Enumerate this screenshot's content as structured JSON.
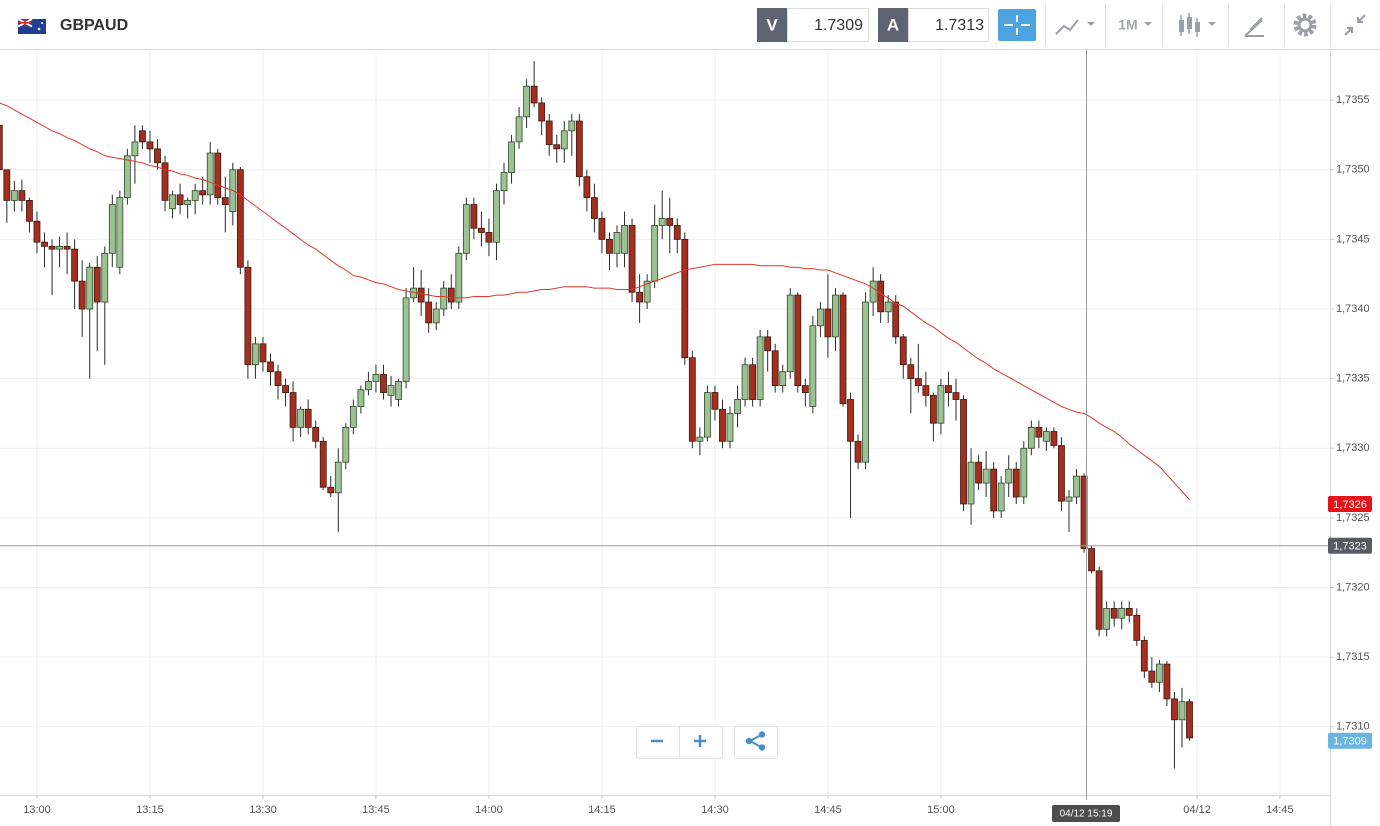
{
  "header": {
    "symbol": "GBPAUD",
    "bid_label": "V",
    "bid": "1.7309",
    "ask_label": "A",
    "ask": "1.7313",
    "timeframe": "1M"
  },
  "chart_data": {
    "type": "candlestick",
    "grid": true,
    "up_color": "#9cc293",
    "down_color": "#a3301f",
    "categories": [
      null,
      null,
      null,
      null,
      null,
      "13:00",
      null,
      null,
      null,
      null,
      null,
      null,
      null,
      null,
      null,
      null,
      null,
      null,
      null,
      null,
      "13:15",
      null,
      null,
      null,
      null,
      null,
      null,
      null,
      null,
      null,
      null,
      null,
      null,
      null,
      null,
      "13:30",
      null,
      null,
      null,
      null,
      null,
      null,
      null,
      null,
      null,
      null,
      null,
      null,
      null,
      null,
      "13:45",
      null,
      null,
      null,
      null,
      null,
      null,
      null,
      null,
      null,
      null,
      null,
      null,
      null,
      null,
      "14:00",
      null,
      null,
      null,
      null,
      null,
      null,
      null,
      null,
      null,
      null,
      null,
      null,
      null,
      null,
      "14:15",
      null,
      null,
      null,
      null,
      null,
      null,
      null,
      null,
      null,
      null,
      null,
      null,
      null,
      null,
      "14:30",
      null,
      null,
      null,
      null,
      null,
      null,
      null,
      null,
      null,
      null,
      null,
      null,
      null,
      null,
      "14:45",
      null,
      null,
      null,
      null,
      null,
      null,
      null,
      null,
      null,
      null,
      null,
      null,
      null,
      null,
      "15:00",
      null,
      null,
      null,
      null,
      null,
      null,
      null,
      null,
      null,
      null,
      null,
      null,
      null,
      null,
      null,
      null,
      null,
      null,
      null,
      null,
      null,
      null,
      null,
      null,
      null,
      null,
      null,
      null,
      null,
      null,
      null,
      null,
      null,
      "04/12",
      null,
      null,
      null,
      null,
      null,
      null,
      null,
      null,
      null,
      null,
      "14:45"
    ],
    "ohlc": [
      [
        1.73532,
        1.73545,
        1.73498,
        1.735
      ],
      [
        1.735,
        1.735,
        1.73462,
        1.73478
      ],
      [
        1.73478,
        1.73492,
        1.7347,
        1.73485
      ],
      [
        1.73485,
        1.73493,
        1.7347,
        1.73478
      ],
      [
        1.73478,
        1.7348,
        1.73455,
        1.73463
      ],
      [
        1.73463,
        1.7347,
        1.7344,
        1.73448
      ],
      [
        1.73448,
        1.73455,
        1.7343,
        1.73445
      ],
      [
        1.73445,
        1.7345,
        1.7341,
        1.73443
      ],
      [
        1.73443,
        1.73452,
        1.7343,
        1.73445
      ],
      [
        1.73445,
        1.73455,
        1.73425,
        1.73443
      ],
      [
        1.73443,
        1.7345,
        1.734,
        1.7342
      ],
      [
        1.7342,
        1.73435,
        1.7338,
        1.734
      ],
      [
        1.734,
        1.73433,
        1.7335,
        1.7343
      ],
      [
        1.7343,
        1.73438,
        1.7337,
        1.73405
      ],
      [
        1.73405,
        1.73445,
        1.7336,
        1.7344
      ],
      [
        1.7344,
        1.73482,
        1.7343,
        1.73475
      ],
      [
        1.7343,
        1.73485,
        1.73425,
        1.7348
      ],
      [
        1.7348,
        1.73515,
        1.73475,
        1.7351
      ],
      [
        1.7351,
        1.73532,
        1.7349,
        1.7352
      ],
      [
        1.73528,
        1.73532,
        1.73515,
        1.7352
      ],
      [
        1.7352,
        1.73528,
        1.73505,
        1.73515
      ],
      [
        1.73515,
        1.73522,
        1.735,
        1.73505
      ],
      [
        1.73505,
        1.7351,
        1.7347,
        1.73478
      ],
      [
        1.73472,
        1.73485,
        1.73465,
        1.73482
      ],
      [
        1.73482,
        1.7349,
        1.73468,
        1.73475
      ],
      [
        1.73475,
        1.7348,
        1.73465,
        1.73478
      ],
      [
        1.73478,
        1.7349,
        1.73468,
        1.73485
      ],
      [
        1.73485,
        1.73495,
        1.73475,
        1.73482
      ],
      [
        1.73482,
        1.7352,
        1.73475,
        1.73512
      ],
      [
        1.73512,
        1.73515,
        1.73475,
        1.7348
      ],
      [
        1.7348,
        1.73495,
        1.73455,
        1.73475
      ],
      [
        1.7347,
        1.73505,
        1.7346,
        1.735
      ],
      [
        1.735,
        1.73502,
        1.73425,
        1.7343
      ],
      [
        1.7343,
        1.73435,
        1.7335,
        1.7336
      ],
      [
        1.7336,
        1.7338,
        1.7335,
        1.73375
      ],
      [
        1.73375,
        1.7338,
        1.73355,
        1.73362
      ],
      [
        1.73362,
        1.73368,
        1.73345,
        1.73355
      ],
      [
        1.73355,
        1.7336,
        1.73335,
        1.73345
      ],
      [
        1.73345,
        1.7335,
        1.7333,
        1.7334
      ],
      [
        1.7334,
        1.73348,
        1.73305,
        1.73315
      ],
      [
        1.73315,
        1.7333,
        1.73308,
        1.73328
      ],
      [
        1.73328,
        1.73335,
        1.7331,
        1.73315
      ],
      [
        1.73315,
        1.7332,
        1.733,
        1.73305
      ],
      [
        1.73305,
        1.73308,
        1.7327,
        1.73272
      ],
      [
        1.73272,
        1.7328,
        1.73265,
        1.73268
      ],
      [
        1.73268,
        1.733,
        1.7324,
        1.7329
      ],
      [
        1.7329,
        1.73318,
        1.73285,
        1.73315
      ],
      [
        1.73315,
        1.73335,
        1.7331,
        1.7333
      ],
      [
        1.7333,
        1.73345,
        1.73325,
        1.73342
      ],
      [
        1.73342,
        1.73355,
        1.73338,
        1.73348
      ],
      [
        1.73348,
        1.7336,
        1.7334,
        1.73353
      ],
      [
        1.73353,
        1.7336,
        1.73335,
        1.7334
      ],
      [
        1.73338,
        1.73352,
        1.7333,
        1.73345
      ],
      [
        1.73335,
        1.7335,
        1.7333,
        1.73348
      ],
      [
        1.73348,
        1.73415,
        1.73343,
        1.73408
      ],
      [
        1.73408,
        1.7343,
        1.73405,
        1.73415
      ],
      [
        1.73415,
        1.73428,
        1.73395,
        1.73405
      ],
      [
        1.73405,
        1.73415,
        1.73383,
        1.7339
      ],
      [
        1.7339,
        1.73405,
        1.73385,
        1.734
      ],
      [
        1.734,
        1.7342,
        1.73395,
        1.73415
      ],
      [
        1.73415,
        1.73425,
        1.734,
        1.73405
      ],
      [
        1.73405,
        1.73445,
        1.734,
        1.7344
      ],
      [
        1.7344,
        1.7348,
        1.73435,
        1.73475
      ],
      [
        1.73475,
        1.7348,
        1.7345,
        1.73458
      ],
      [
        1.73458,
        1.7347,
        1.73445,
        1.73455
      ],
      [
        1.73455,
        1.73465,
        1.73438,
        1.73448
      ],
      [
        1.73448,
        1.7349,
        1.73435,
        1.73485
      ],
      [
        1.73485,
        1.73505,
        1.73475,
        1.73498
      ],
      [
        1.73498,
        1.73525,
        1.7349,
        1.7352
      ],
      [
        1.7352,
        1.73545,
        1.73515,
        1.73538
      ],
      [
        1.73538,
        1.73565,
        1.7353,
        1.7356
      ],
      [
        1.7356,
        1.73578,
        1.73545,
        1.73548
      ],
      [
        1.73548,
        1.73552,
        1.73525,
        1.73535
      ],
      [
        1.73535,
        1.7354,
        1.7351,
        1.73518
      ],
      [
        1.73518,
        1.73525,
        1.73505,
        1.73515
      ],
      [
        1.73515,
        1.73535,
        1.73505,
        1.73528
      ],
      [
        1.73528,
        1.7354,
        1.7351,
        1.73535
      ],
      [
        1.73535,
        1.7354,
        1.73488,
        1.73495
      ],
      [
        1.73495,
        1.735,
        1.7347,
        1.7348
      ],
      [
        1.7348,
        1.7349,
        1.73455,
        1.73465
      ],
      [
        1.73465,
        1.7347,
        1.7344,
        1.7345
      ],
      [
        1.7345,
        1.73455,
        1.73428,
        1.7344
      ],
      [
        1.7344,
        1.7346,
        1.7343,
        1.73455
      ],
      [
        1.7344,
        1.7347,
        1.7343,
        1.7346
      ],
      [
        1.7346,
        1.73465,
        1.73405,
        1.73412
      ],
      [
        1.73412,
        1.73425,
        1.7339,
        1.73405
      ],
      [
        1.73405,
        1.73425,
        1.734,
        1.7342
      ],
      [
        1.7342,
        1.73475,
        1.73415,
        1.7346
      ],
      [
        1.7346,
        1.73485,
        1.7345,
        1.73465
      ],
      [
        1.73465,
        1.7348,
        1.7344,
        1.7346
      ],
      [
        1.7346,
        1.73465,
        1.7344,
        1.7345
      ],
      [
        1.7345,
        1.73455,
        1.7336,
        1.73365
      ],
      [
        1.73365,
        1.7337,
        1.733,
        1.73305
      ],
      [
        1.73305,
        1.73315,
        1.73295,
        1.73308
      ],
      [
        1.73308,
        1.73345,
        1.73305,
        1.7334
      ],
      [
        1.7334,
        1.73345,
        1.7332,
        1.73328
      ],
      [
        1.73328,
        1.73335,
        1.733,
        1.73305
      ],
      [
        1.73305,
        1.7333,
        1.733,
        1.73325
      ],
      [
        1.73325,
        1.73345,
        1.73315,
        1.73335
      ],
      [
        1.73335,
        1.73365,
        1.7333,
        1.7336
      ],
      [
        1.7336,
        1.73365,
        1.7333,
        1.73335
      ],
      [
        1.73335,
        1.73385,
        1.7333,
        1.7338
      ],
      [
        1.7338,
        1.73385,
        1.73355,
        1.7337
      ],
      [
        1.7337,
        1.73375,
        1.7334,
        1.73345
      ],
      [
        1.73345,
        1.7336,
        1.7334,
        1.73355
      ],
      [
        1.73355,
        1.73415,
        1.7335,
        1.7341
      ],
      [
        1.7341,
        1.73412,
        1.7334,
        1.73345
      ],
      [
        1.73345,
        1.7335,
        1.7333,
        1.7334
      ],
      [
        1.7333,
        1.73395,
        1.73325,
        1.73388
      ],
      [
        1.73388,
        1.73405,
        1.7338,
        1.734
      ],
      [
        1.734,
        1.73425,
        1.73365,
        1.7338
      ],
      [
        1.7338,
        1.73415,
        1.7337,
        1.7341
      ],
      [
        1.7341,
        1.73412,
        1.7333,
        1.73332
      ],
      [
        1.73335,
        1.7334,
        1.7325,
        1.73305
      ],
      [
        1.73305,
        1.7331,
        1.73285,
        1.7329
      ],
      [
        1.7329,
        1.73412,
        1.73285,
        1.73405
      ],
      [
        1.73405,
        1.7343,
        1.73395,
        1.7342
      ],
      [
        1.7342,
        1.73425,
        1.7339,
        1.73398
      ],
      [
        1.73398,
        1.7341,
        1.7339,
        1.73405
      ],
      [
        1.73405,
        1.7341,
        1.73375,
        1.7338
      ],
      [
        1.7338,
        1.73382,
        1.7335,
        1.7336
      ],
      [
        1.7336,
        1.73365,
        1.73325,
        1.7335
      ],
      [
        1.7335,
        1.73375,
        1.7334,
        1.73345
      ],
      [
        1.73345,
        1.73355,
        1.7333,
        1.73338
      ],
      [
        1.73338,
        1.7334,
        1.73305,
        1.73318
      ],
      [
        1.73318,
        1.7335,
        1.7331,
        1.73345
      ],
      [
        1.73345,
        1.73355,
        1.7333,
        1.7334
      ],
      [
        1.7334,
        1.7335,
        1.7332,
        1.73335
      ],
      [
        1.73335,
        1.73338,
        1.73255,
        1.7326
      ],
      [
        1.7326,
        1.733,
        1.73245,
        1.7329
      ],
      [
        1.7329,
        1.73295,
        1.7327,
        1.73275
      ],
      [
        1.73275,
        1.73298,
        1.73265,
        1.73285
      ],
      [
        1.73285,
        1.7329,
        1.7325,
        1.73255
      ],
      [
        1.73255,
        1.7328,
        1.7325,
        1.73275
      ],
      [
        1.73275,
        1.73295,
        1.73265,
        1.73285
      ],
      [
        1.73285,
        1.7329,
        1.7326,
        1.73265
      ],
      [
        1.73265,
        1.73305,
        1.7326,
        1.733
      ],
      [
        1.733,
        1.7332,
        1.73295,
        1.73315
      ],
      [
        1.73315,
        1.7332,
        1.733,
        1.73308
      ],
      [
        1.73305,
        1.73315,
        1.73298,
        1.73312
      ],
      [
        1.73312,
        1.73315,
        1.733,
        1.73302
      ],
      [
        1.73302,
        1.73308,
        1.73255,
        1.73262
      ],
      [
        1.73262,
        1.7327,
        1.7324,
        1.73265
      ],
      [
        1.73265,
        1.73285,
        1.7326,
        1.7328
      ],
      [
        1.7328,
        1.73282,
        1.73225,
        1.73228
      ],
      [
        1.73228,
        1.7323,
        1.7321,
        1.73212
      ],
      [
        1.73212,
        1.73215,
        1.73165,
        1.7317
      ],
      [
        1.7317,
        1.7319,
        1.73165,
        1.73185
      ],
      [
        1.73185,
        1.7319,
        1.73172,
        1.73178
      ],
      [
        1.73178,
        1.7319,
        1.7317,
        1.73185
      ],
      [
        1.73185,
        1.7319,
        1.73175,
        1.7318
      ],
      [
        1.7318,
        1.73185,
        1.73158,
        1.73162
      ],
      [
        1.73162,
        1.73165,
        1.73135,
        1.7314
      ],
      [
        1.7314,
        1.7315,
        1.73128,
        1.73132
      ],
      [
        1.73132,
        1.73148,
        1.73125,
        1.73145
      ],
      [
        1.73145,
        1.73147,
        1.73115,
        1.7312
      ],
      [
        1.7312,
        1.73125,
        1.7307,
        1.73105
      ],
      [
        1.73105,
        1.73128,
        1.73085,
        1.73118
      ],
      [
        1.73118,
        1.7312,
        1.7309,
        1.73092
      ],
      null,
      null,
      null,
      null,
      null,
      null,
      null,
      null,
      null,
      null,
      null,
      null
    ],
    "ma": {
      "color": "#e0392b",
      "values": [
        1.73548,
        1.73546,
        1.73543,
        1.7354,
        1.73537,
        1.73534,
        1.73531,
        1.73528,
        1.73526,
        1.73523,
        1.73521,
        1.73518,
        1.73515,
        1.73513,
        1.7351,
        1.73509,
        1.73508,
        1.73507,
        1.73506,
        1.73505,
        1.73503,
        1.73502,
        1.735,
        1.73499,
        1.73497,
        1.73496,
        1.73494,
        1.73493,
        1.73491,
        1.73489,
        1.73487,
        1.73485,
        1.73482,
        1.73478,
        1.73474,
        1.7347,
        1.73466,
        1.73462,
        1.73458,
        1.73454,
        1.7345,
        1.73446,
        1.73443,
        1.73439,
        1.73435,
        1.73431,
        1.73428,
        1.73424,
        1.73423,
        1.73421,
        1.73419,
        1.73418,
        1.73416,
        1.73414,
        1.73413,
        1.73412,
        1.73411,
        1.7341,
        1.73409,
        1.73409,
        1.73408,
        1.73408,
        1.73408,
        1.73409,
        1.73409,
        1.73409,
        1.7341,
        1.7341,
        1.73411,
        1.73412,
        1.73412,
        1.73413,
        1.73414,
        1.73414,
        1.73415,
        1.73416,
        1.73416,
        1.73416,
        1.73416,
        1.73415,
        1.73415,
        1.73415,
        1.73414,
        1.73414,
        1.73414,
        1.73416,
        1.73418,
        1.7342,
        1.73422,
        1.73424,
        1.73426,
        1.73428,
        1.73429,
        1.7343,
        1.73431,
        1.73432,
        1.73432,
        1.73432,
        1.73432,
        1.73432,
        1.73432,
        1.73431,
        1.73431,
        1.73431,
        1.73431,
        1.7343,
        1.7343,
        1.73429,
        1.73429,
        1.73428,
        1.73428,
        1.73426,
        1.73424,
        1.73422,
        1.7342,
        1.73418,
        1.73415,
        1.73411,
        1.73408,
        1.73404,
        1.73402,
        1.73398,
        1.73394,
        1.7339,
        1.73387,
        1.73383,
        1.73379,
        1.73376,
        1.73372,
        1.73368,
        1.73364,
        1.73361,
        1.73357,
        1.73354,
        1.73351,
        1.73348,
        1.73345,
        1.73342,
        1.73339,
        1.73336,
        1.73333,
        1.7333,
        1.73328,
        1.73326,
        1.73325,
        1.73322,
        1.73318,
        1.73315,
        1.73312,
        1.73308,
        1.73303,
        1.73299,
        1.73295,
        1.73291,
        1.73287,
        1.73281,
        1.73275,
        1.73269,
        1.73263,
        null,
        null,
        null,
        null,
        null,
        null,
        null,
        null,
        null,
        null,
        null,
        null
      ]
    },
    "ylim": [
      1.73051,
      1.73586
    ],
    "yticks": [
      {
        "value": 1.731,
        "label": "1,7310"
      },
      {
        "value": 1.7315,
        "label": "1,7315"
      },
      {
        "value": 1.732,
        "label": "1,7320"
      },
      {
        "value": 1.7325,
        "label": "1,7325"
      },
      {
        "value": 1.733,
        "label": "1,7330"
      },
      {
        "value": 1.7335,
        "label": "1,7335"
      },
      {
        "value": 1.734,
        "label": "1,7340"
      },
      {
        "value": 1.7345,
        "label": "1,7345"
      },
      {
        "value": 1.735,
        "label": "1,7350"
      },
      {
        "value": 1.7355,
        "label": "1,7355"
      }
    ],
    "price_labels": [
      {
        "value": 1.7326,
        "label": "1,7326",
        "color": "#e5141a"
      },
      {
        "value": 1.7323,
        "label": "1,7323",
        "color": "#555a63"
      },
      {
        "value": 1.7309,
        "label": "1,7309",
        "color": "#6ab4e0"
      }
    ],
    "crosshair_label": "04/12 15:19"
  }
}
